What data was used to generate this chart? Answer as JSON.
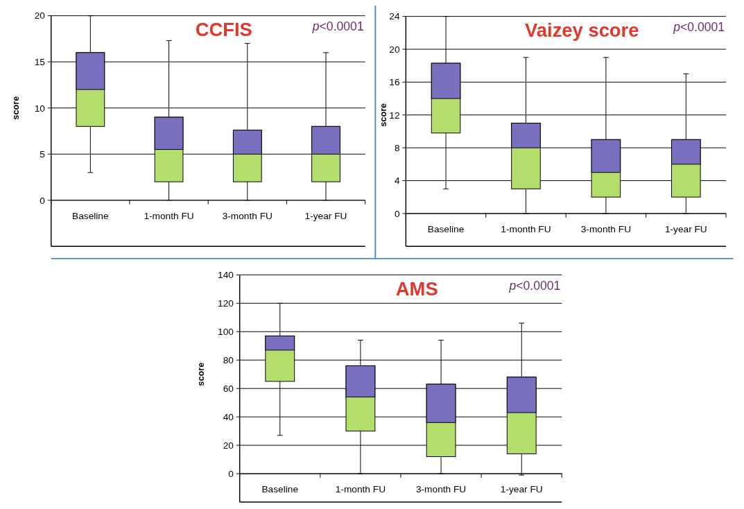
{
  "chart_data": [
    {
      "type": "box",
      "title": "CCFIS",
      "ylabel": "score",
      "annotations": [
        "p<0.0001"
      ],
      "categories": [
        "Baseline",
        "1-month FU",
        "3-month FU",
        "1-year FU"
      ],
      "color": "#7a70c0",
      "ylim": [
        -5,
        20
      ],
      "yticks": [
        0,
        5,
        10,
        15,
        20
      ],
      "grid": "y",
      "series": [
        {
          "color": "#b3de6c",
          "boxes": [
            {
              "low": 3,
              "q1": 8,
              "median": 12,
              "q3": 16,
              "high": 20
            },
            {
              "low": 0,
              "q1": 2,
              "median": 5.5,
              "q3": 9,
              "high": 17.3
            },
            {
              "low": 0,
              "q1": 2,
              "median": 5,
              "q3": 7.6,
              "high": 17
            },
            {
              "low": 0,
              "q1": 2,
              "median": 5,
              "q3": 8,
              "high": 16
            }
          ]
        }
      ]
    },
    {
      "type": "box",
      "title": "Vaizey score",
      "ylabel": "score",
      "annotations": [
        "p<0.0001"
      ],
      "categories": [
        "Baseline",
        "1-month FU",
        "3-month FU",
        "1-year FU"
      ],
      "color": "#7a70c0",
      "ylim": [
        -4,
        24
      ],
      "yticks": [
        0,
        4,
        8,
        12,
        16,
        20,
        24
      ],
      "grid": "y",
      "series": [
        {
          "color": "#b3de6c",
          "boxes": [
            {
              "low": 3,
              "q1": 9.8,
              "median": 14,
              "q3": 18.3,
              "high": 24
            },
            {
              "low": 0,
              "q1": 3,
              "median": 8,
              "q3": 11,
              "high": 19
            },
            {
              "low": 0,
              "q1": 2,
              "median": 5,
              "q3": 9,
              "high": 19
            },
            {
              "low": 0,
              "q1": 2,
              "median": 6,
              "q3": 9,
              "high": 17
            }
          ]
        }
      ]
    },
    {
      "type": "box",
      "title": "AMS",
      "ylabel": "score",
      "annotations": [
        "p<0.0001"
      ],
      "categories": [
        "Baseline",
        "1-month FU",
        "3-month FU",
        "1-year FU"
      ],
      "color": "#7a70c0",
      "ylim": [
        -20,
        140
      ],
      "yticks": [
        0,
        20,
        40,
        60,
        80,
        100,
        120,
        140
      ],
      "grid": "y",
      "series": [
        {
          "color": "#b3de6c",
          "boxes": [
            {
              "low": 27,
              "q1": 65,
              "median": 87,
              "q3": 97,
              "high": 120
            },
            {
              "low": 0,
              "q1": 30,
              "median": 54,
              "q3": 76,
              "high": 94
            },
            {
              "low": 0,
              "q1": 12,
              "median": 36,
              "q3": 63,
              "high": 94
            },
            {
              "low": -1,
              "q1": 14,
              "median": 43,
              "q3": 68,
              "high": 106
            }
          ]
        }
      ]
    }
  ]
}
